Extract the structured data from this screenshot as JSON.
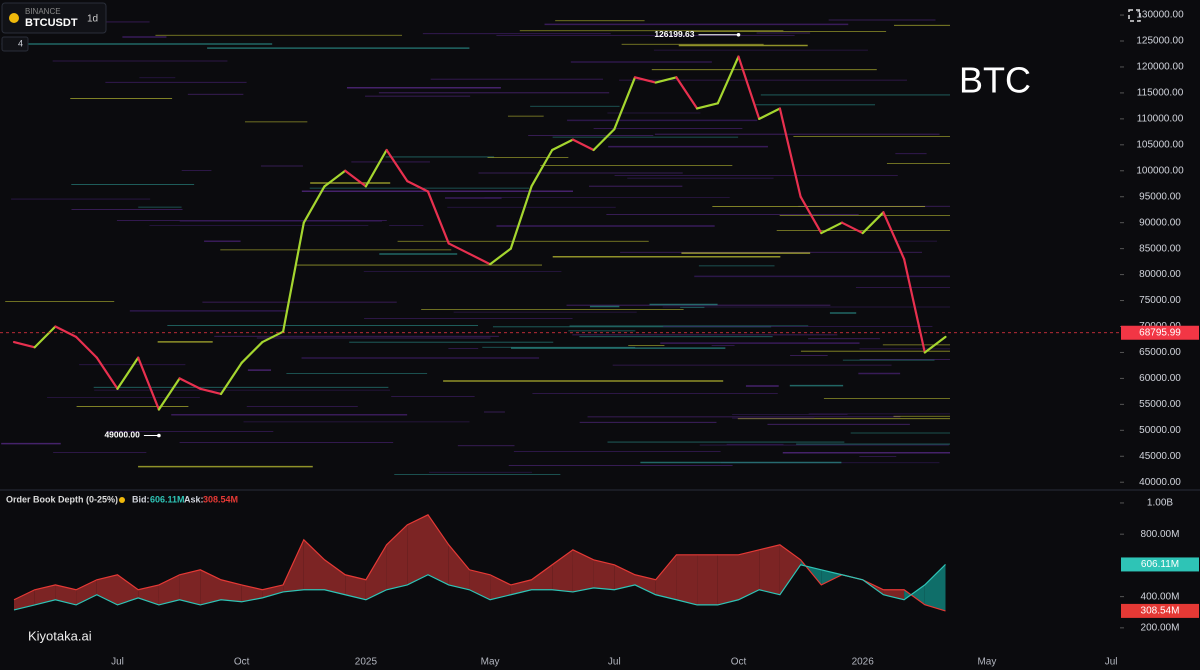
{
  "header": {
    "exchange": "BINANCE",
    "symbol": "BTCUSDT",
    "interval": "1d",
    "indicator_count": 4
  },
  "watermark": "Kiyotaka.ai",
  "chart_data": [
    {
      "type": "line",
      "title": "BTC",
      "categories": [
        null,
        null,
        null,
        null,
        null,
        "Jul",
        null,
        null,
        null,
        null,
        null,
        "Oct",
        null,
        null,
        null,
        null,
        null,
        "2025",
        null,
        null,
        null,
        null,
        null,
        "May",
        null,
        null,
        null,
        null,
        null,
        "Jul",
        null,
        null,
        null,
        null,
        null,
        "Oct",
        null,
        null,
        null,
        null,
        null,
        "2026",
        null,
        null,
        null,
        null,
        null,
        "May",
        null,
        null,
        null,
        null,
        null,
        "Jul"
      ],
      "values": [
        67000,
        66000,
        70000,
        68000,
        64000,
        58000,
        64000,
        54000,
        60000,
        58000,
        57000,
        63000,
        67000,
        69000,
        90000,
        97000,
        100000,
        97000,
        104000,
        98000,
        96000,
        86000,
        84000,
        82000,
        85000,
        97000,
        104000,
        106000,
        104000,
        108000,
        118000,
        117000,
        118000,
        112000,
        113000,
        122000,
        110000,
        112000,
        95000,
        88000,
        90000,
        88000,
        92000,
        83000,
        65000,
        68000,
        null,
        null,
        null,
        null,
        null,
        null,
        null,
        null
      ],
      "up_color": "#a5d62f",
      "down_color": "#e8304f",
      "ylim": [
        38500,
        132900
      ],
      "yticks": [
        {
          "value": 40000,
          "label": "40000.00"
        },
        {
          "value": 45000,
          "label": "45000.00"
        },
        {
          "value": 50000,
          "label": "50000.00"
        },
        {
          "value": 55000,
          "label": "55000.00"
        },
        {
          "value": 60000,
          "label": "60000.00"
        },
        {
          "value": 65000,
          "label": "65000.00"
        },
        {
          "value": 70000,
          "label": "70000.00"
        },
        {
          "value": 75000,
          "label": "75000.00"
        },
        {
          "value": 80000,
          "label": "80000.00"
        },
        {
          "value": 85000,
          "label": "85000.00"
        },
        {
          "value": 90000,
          "label": "90000.00"
        },
        {
          "value": 95000,
          "label": "95000.00"
        },
        {
          "value": 100000,
          "label": "100000.00"
        },
        {
          "value": 105000,
          "label": "105000.00"
        },
        {
          "value": 110000,
          "label": "110000.00"
        },
        {
          "value": 115000,
          "label": "115000.00"
        },
        {
          "value": 120000,
          "label": "120000.00"
        },
        {
          "value": 125000,
          "label": "125000.00"
        },
        {
          "value": 130000,
          "label": "130000.00"
        }
      ],
      "last_price": 68795.99,
      "last_price_color": "#f23645",
      "high": 126199.63,
      "low": {
        "value": 49000,
        "label": "49000.00"
      }
    },
    {
      "type": "area",
      "title": "Order Book Depth (0-25%)",
      "series": [
        {
          "name": "Bid:",
          "color": "#2ec4b6",
          "fill": "#0f6e69",
          "values": [
            315,
            347,
            380,
            347,
            412,
            347,
            392,
            347,
            380,
            347,
            380,
            367,
            392,
            430,
            444,
            444,
            412,
            380,
            444,
            475,
            540,
            475,
            444,
            380,
            412,
            444,
            444,
            430,
            456,
            444,
            475,
            412,
            380,
            347,
            347,
            380,
            444,
            412,
            604,
            572,
            540,
            508,
            412,
            380,
            475,
            606.11,
            null,
            null,
            null,
            null,
            null,
            null,
            null,
            null
          ],
          "value_labels": [
            null,
            null,
            null,
            null,
            null,
            null,
            null,
            null,
            null,
            null,
            null,
            null,
            null,
            null,
            null,
            null,
            null,
            null,
            null,
            null,
            null,
            null,
            null,
            null,
            null,
            null,
            null,
            null,
            null,
            null,
            null,
            null,
            null,
            null,
            null,
            null,
            null,
            null,
            null,
            null,
            null,
            null,
            null,
            null,
            null,
            "606.11M",
            null,
            null,
            null,
            null,
            null,
            null,
            null,
            null
          ]
        },
        {
          "name": "Ask:",
          "color": "#e53935",
          "fill": "#7c2424",
          "values": [
            380,
            444,
            475,
            444,
            508,
            540,
            444,
            475,
            540,
            572,
            508,
            475,
            444,
            475,
            764,
            636,
            540,
            508,
            732,
            860,
            924,
            732,
            572,
            540,
            475,
            508,
            604,
            700,
            636,
            604,
            540,
            508,
            668,
            668,
            668,
            668,
            700,
            732,
            636,
            475,
            540,
            508,
            444,
            444,
            348,
            308.54,
            null,
            null,
            null,
            null,
            null,
            null,
            null,
            null
          ],
          "value_labels": [
            null,
            null,
            null,
            null,
            null,
            null,
            null,
            null,
            null,
            null,
            null,
            null,
            null,
            null,
            null,
            null,
            null,
            null,
            null,
            null,
            null,
            null,
            null,
            null,
            null,
            null,
            null,
            null,
            null,
            null,
            null,
            null,
            null,
            null,
            null,
            null,
            null,
            null,
            null,
            null,
            null,
            null,
            null,
            null,
            null,
            "308.54M",
            null,
            null,
            null,
            null,
            null,
            null,
            null,
            null
          ]
        }
      ],
      "ylim": [
        -70,
        1083
      ],
      "yticks": [
        {
          "value": 200,
          "label": "200.00M"
        },
        {
          "value": 400,
          "label": "400.00M"
        },
        {
          "value": 800,
          "label": "800.00M"
        },
        {
          "value": 1000,
          "label": "1.00B"
        }
      ]
    }
  ]
}
